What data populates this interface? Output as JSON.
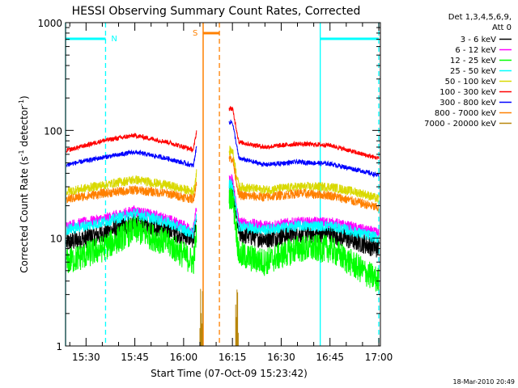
{
  "chart_data": {
    "type": "line",
    "title": "HESSI Observing Summary Count Rates, Corrected",
    "xlabel": "Start Time (07-Oct-09 15:23:42)",
    "ylabel_main": "Corrected Count Rate (s",
    "ylabel_sup1": "-1",
    "ylabel_mid": " detector",
    "ylabel_sup2": "-1",
    "ylabel_end": ")",
    "yscale": "log",
    "ylim": [
      1,
      1000
    ],
    "xlim": [
      "15:23:42",
      "17:00:30"
    ],
    "x_ticks": [
      "15:30",
      "15:45",
      "16:00",
      "16:15",
      "16:30",
      "16:45",
      "17:00"
    ],
    "y_ticks": [
      "1",
      "10",
      "100",
      "1000"
    ],
    "legend_header_1": "Det 1,3,4,5,6,9,",
    "legend_header_2": "Att 0",
    "legend_position": "right",
    "series": [
      {
        "name": "3 - 6 keV",
        "color": "#000000",
        "x": [
          "15:24",
          "15:35",
          "15:45",
          "15:55",
          "16:03",
          "16:05",
          "16:15",
          "16:17",
          "16:25",
          "16:35",
          "16:45",
          "16:55",
          "17:00"
        ],
        "y": [
          9,
          11,
          14,
          12,
          10,
          25,
          30,
          11,
          10,
          11,
          11,
          9,
          8
        ]
      },
      {
        "name": "6 - 12 keV",
        "color": "#ff00ff",
        "x": [
          "15:24",
          "15:35",
          "15:45",
          "15:55",
          "16:03",
          "16:05",
          "16:15",
          "16:17",
          "16:25",
          "16:35",
          "16:45",
          "16:55",
          "17:00"
        ],
        "y": [
          13,
          15,
          18,
          15,
          12,
          30,
          35,
          14,
          13,
          14,
          14,
          12,
          11
        ]
      },
      {
        "name": "12 - 25 keV",
        "color": "#00ff00",
        "x": [
          "15:24",
          "15:35",
          "15:45",
          "15:55",
          "16:03",
          "16:05",
          "16:15",
          "16:17",
          "16:25",
          "16:35",
          "16:45",
          "16:55",
          "17:00"
        ],
        "y": [
          6,
          8,
          12,
          9,
          6,
          20,
          25,
          7,
          6,
          8,
          8,
          5,
          4
        ]
      },
      {
        "name": "25 - 50 keV",
        "color": "#00ffff",
        "x": [
          "15:24",
          "15:35",
          "15:45",
          "15:55",
          "16:03",
          "16:05",
          "16:15",
          "16:17",
          "16:25",
          "16:35",
          "16:45",
          "16:55",
          "17:00"
        ],
        "y": [
          12,
          14,
          17,
          14,
          11,
          28,
          32,
          13,
          12,
          13,
          13,
          11,
          10
        ]
      },
      {
        "name": "50 - 100 keV",
        "color": "#d9d900",
        "x": [
          "15:24",
          "15:35",
          "15:45",
          "15:55",
          "16:03",
          "16:05",
          "16:15",
          "16:17",
          "16:25",
          "16:35",
          "16:45",
          "16:55",
          "17:00"
        ],
        "y": [
          27,
          31,
          35,
          31,
          27,
          60,
          65,
          30,
          28,
          30,
          30,
          26,
          23
        ]
      },
      {
        "name": "100 - 300 keV",
        "color": "#ff0000",
        "x": [
          "15:24",
          "15:35",
          "15:45",
          "15:55",
          "16:03",
          "16:05",
          "16:15",
          "16:17",
          "16:25",
          "16:35",
          "16:45",
          "16:55",
          "17:00"
        ],
        "y": [
          65,
          80,
          90,
          78,
          66,
          150,
          160,
          78,
          70,
          75,
          73,
          60,
          55
        ]
      },
      {
        "name": "300 - 800 keV",
        "color": "#0000ff",
        "x": [
          "15:24",
          "15:35",
          "15:45",
          "15:55",
          "16:03",
          "16:05",
          "16:15",
          "16:17",
          "16:25",
          "16:35",
          "16:45",
          "16:55",
          "17:00"
        ],
        "y": [
          48,
          56,
          63,
          55,
          47,
          110,
          120,
          55,
          48,
          51,
          49,
          42,
          38
        ]
      },
      {
        "name": "800 - 7000 keV",
        "color": "#ff8000",
        "x": [
          "15:24",
          "15:35",
          "15:45",
          "15:55",
          "16:03",
          "16:05",
          "16:15",
          "16:17",
          "16:25",
          "16:35",
          "16:45",
          "16:55",
          "17:00"
        ],
        "y": [
          23,
          26,
          28,
          26,
          23,
          50,
          55,
          25,
          24,
          26,
          25,
          21,
          19
        ]
      },
      {
        "name": "7000 - 20000 keV",
        "color": "#b8860b",
        "x": [
          "16:05",
          "16:06",
          "16:16",
          "16:17"
        ],
        "y": [
          2,
          3,
          3,
          2
        ]
      }
    ],
    "annotations": {
      "night_label": "N",
      "saa_label": "S",
      "night_color": "#00ffff",
      "saa_color": "#ff8000",
      "night_bars": [
        [
          "15:23:42",
          "15:36"
        ],
        [
          "16:42",
          "17:00"
        ]
      ],
      "saa_bar": [
        "16:06",
        "16:11"
      ],
      "cyan_solid_lines": [
        "15:23:42",
        "16:42"
      ],
      "cyan_dashed_lines": [
        "15:36",
        "17:00"
      ],
      "orange_solid_line": "16:06",
      "orange_dashed_line": "16:11",
      "saa_gap": [
        "16:04",
        "16:14"
      ]
    }
  },
  "footer": {
    "timestamp": "18-Mar-2010 20:49"
  }
}
